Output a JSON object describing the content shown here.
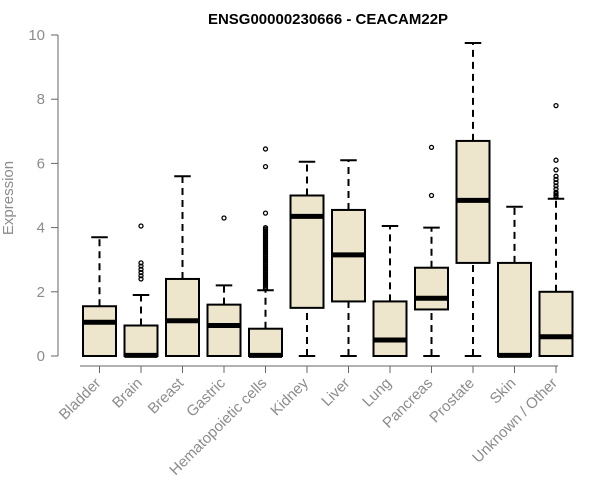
{
  "chart_data": {
    "type": "boxplot",
    "title": "ENSG00000230666 - CEACAM22P",
    "xlabel": "",
    "ylabel": "Expression",
    "ylim": [
      0,
      10
    ],
    "yticks": [
      0,
      2,
      4,
      6,
      8,
      10
    ],
    "ytick_labels": [
      "0",
      "2",
      "4",
      "6",
      "8",
      "10"
    ],
    "colors": {
      "box_fill": "#ede5cc",
      "stroke": "#000000",
      "axis_text": "#8c8c8c",
      "axis_line": "#666666"
    },
    "categories": [
      "Bladder",
      "Brain",
      "Breast",
      "Gastric",
      "Hematopoietic cells",
      "Kidney",
      "Liver",
      "Lung",
      "Pancreas",
      "Prostate",
      "Skin",
      "Unknown / Other"
    ],
    "boxes": [
      {
        "name": "Bladder",
        "q1": 0.0,
        "median": 1.05,
        "q3": 1.55,
        "whisker_low": 0.0,
        "whisker_high": 3.7,
        "outliers": []
      },
      {
        "name": "Brain",
        "q1": 0.0,
        "median": 0.02,
        "q3": 0.95,
        "whisker_low": 0.0,
        "whisker_high": 1.9,
        "outliers": [
          2.4,
          2.5,
          2.6,
          2.7,
          2.8,
          2.9,
          4.05
        ]
      },
      {
        "name": "Breast",
        "q1": 0.0,
        "median": 1.1,
        "q3": 2.4,
        "whisker_low": 0.0,
        "whisker_high": 5.6,
        "outliers": []
      },
      {
        "name": "Gastric",
        "q1": 0.0,
        "median": 0.95,
        "q3": 1.6,
        "whisker_low": 0.0,
        "whisker_high": 2.2,
        "outliers": [
          4.3
        ]
      },
      {
        "name": "Hematopoietic cells",
        "q1": 0.0,
        "median": 0.02,
        "q3": 0.85,
        "whisker_low": 0.0,
        "whisker_high": 2.05,
        "outliers": [
          2.1,
          2.15,
          2.2,
          2.25,
          2.3,
          2.35,
          2.4,
          2.45,
          2.5,
          2.55,
          2.6,
          2.65,
          2.7,
          2.75,
          2.8,
          2.85,
          2.9,
          2.95,
          3.0,
          3.05,
          3.1,
          3.15,
          3.2,
          3.25,
          3.3,
          3.35,
          3.4,
          3.45,
          3.5,
          3.55,
          3.6,
          3.65,
          3.7,
          3.75,
          3.8,
          3.85,
          3.9,
          3.95,
          4.0,
          4.45,
          5.9,
          6.45
        ]
      },
      {
        "name": "Kidney",
        "q1": 1.5,
        "median": 4.35,
        "q3": 5.0,
        "whisker_low": 0.0,
        "whisker_high": 6.05,
        "outliers": []
      },
      {
        "name": "Liver",
        "q1": 1.7,
        "median": 3.15,
        "q3": 4.55,
        "whisker_low": 0.0,
        "whisker_high": 6.1,
        "outliers": []
      },
      {
        "name": "Lung",
        "q1": 0.0,
        "median": 0.5,
        "q3": 1.7,
        "whisker_low": 0.0,
        "whisker_high": 4.05,
        "outliers": []
      },
      {
        "name": "Pancreas",
        "q1": 1.45,
        "median": 1.8,
        "q3": 2.75,
        "whisker_low": 0.0,
        "whisker_high": 4.0,
        "outliers": [
          5.0,
          6.5
        ]
      },
      {
        "name": "Prostate",
        "q1": 2.9,
        "median": 4.85,
        "q3": 6.7,
        "whisker_low": 0.0,
        "whisker_high": 9.75,
        "outliers": []
      },
      {
        "name": "Skin",
        "q1": 0.0,
        "median": 0.02,
        "q3": 2.9,
        "whisker_low": 0.0,
        "whisker_high": 4.65,
        "outliers": []
      },
      {
        "name": "Unknown / Other",
        "q1": 0.0,
        "median": 0.6,
        "q3": 2.0,
        "whisker_low": 0.0,
        "whisker_high": 4.9,
        "outliers": [
          4.95,
          5.0,
          5.05,
          5.1,
          5.2,
          5.3,
          5.4,
          5.5,
          5.6,
          5.8,
          6.1,
          7.8
        ]
      }
    ]
  }
}
